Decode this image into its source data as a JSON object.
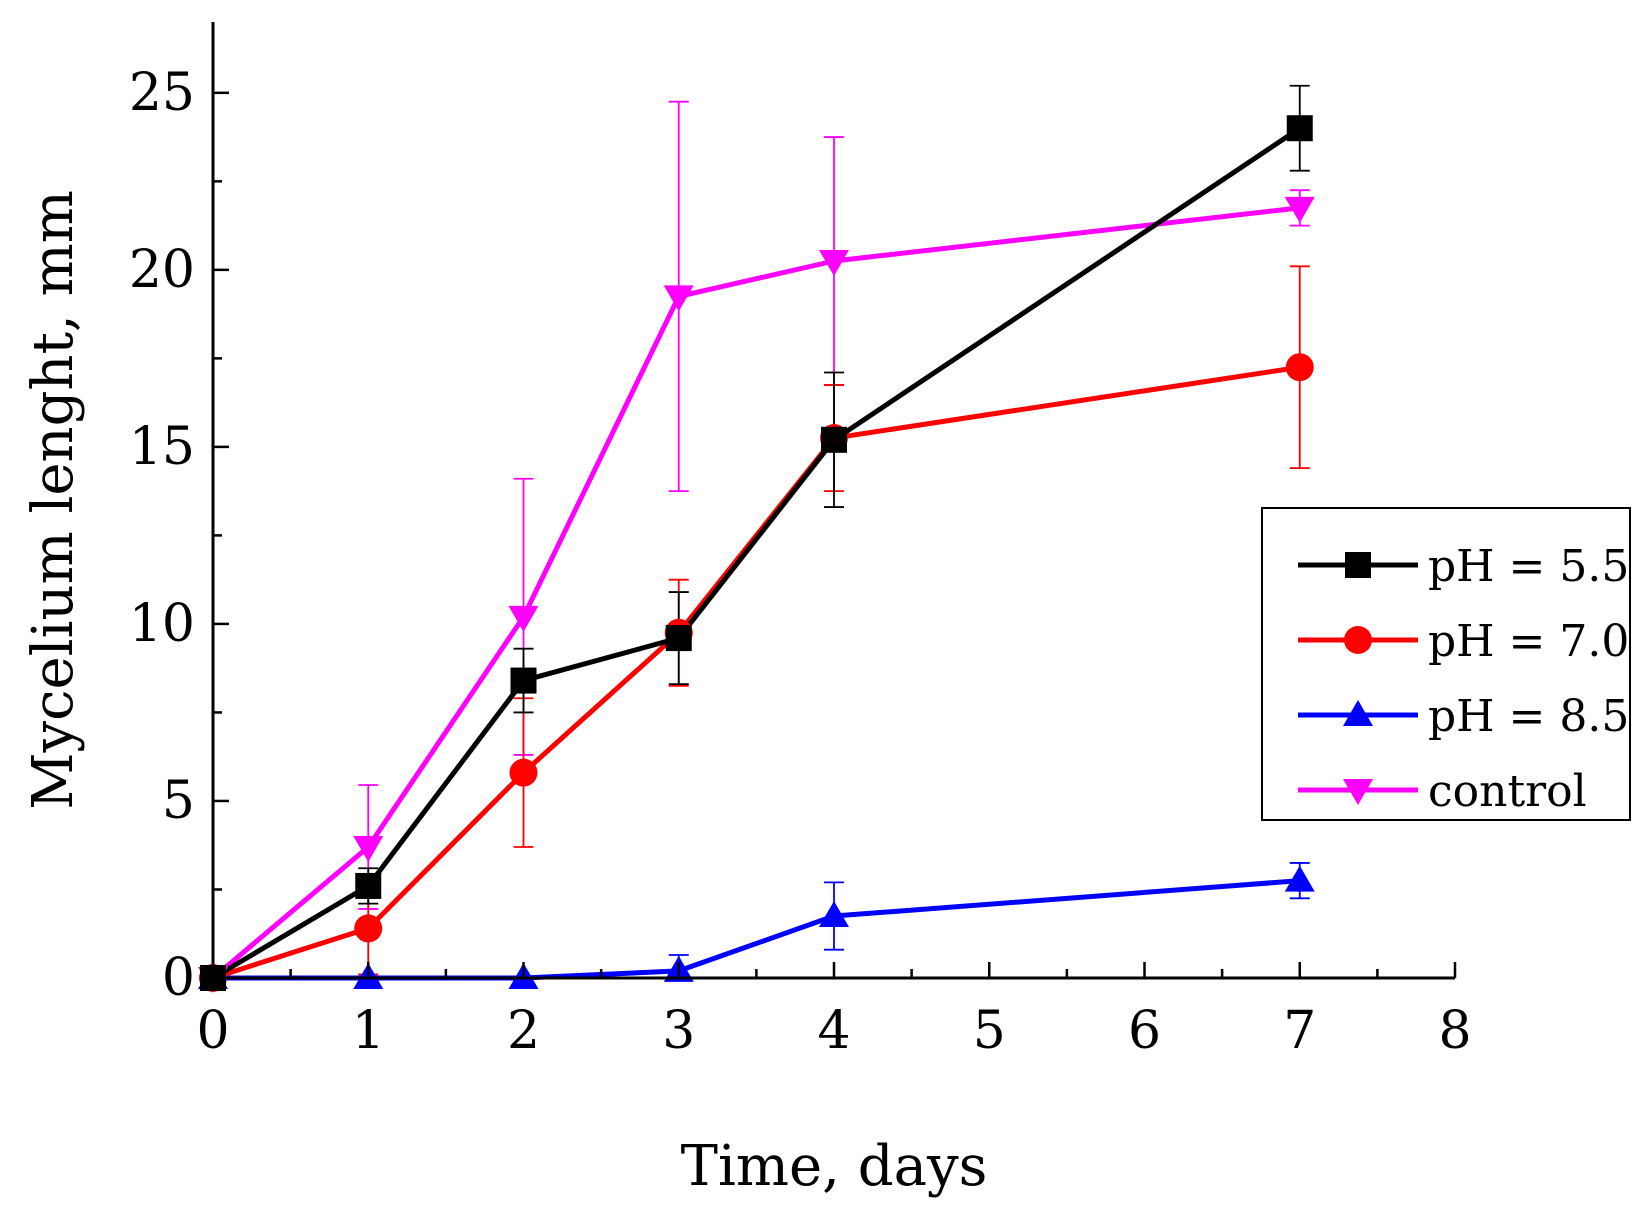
{
  "chart_data": {
    "type": "line",
    "title": "",
    "xlabel": "Time, days",
    "ylabel": "Mycelium lenght, mm",
    "xlim": [
      0,
      8
    ],
    "ylim": [
      0,
      27
    ],
    "xticks": [
      "0",
      "1",
      "2",
      "3",
      "4",
      "5",
      "6",
      "7",
      "8"
    ],
    "yticks": [
      "0",
      "5",
      "10",
      "15",
      "20",
      "25"
    ],
    "x": [
      0,
      1,
      2,
      3,
      4,
      7
    ],
    "legend_position": "right",
    "series": [
      {
        "name": "pH = 5.5",
        "color": "#000000",
        "marker": "square",
        "values": [
          0,
          2.6,
          8.4,
          9.6,
          15.2,
          24.0
        ],
        "errors": [
          0,
          0.5,
          0.9,
          1.3,
          1.9,
          1.2
        ]
      },
      {
        "name": "pH = 7.0",
        "color": "#ff0000",
        "marker": "circle",
        "values": [
          0,
          1.4,
          5.8,
          9.75,
          15.25,
          17.25
        ],
        "errors": [
          0,
          1.3,
          2.1,
          1.5,
          1.5,
          2.85
        ]
      },
      {
        "name": "pH = 8.5",
        "color": "#0000ff",
        "marker": "triangle-up",
        "values": [
          0,
          0,
          0,
          0.2,
          1.75,
          2.75
        ],
        "errors": [
          0,
          0,
          0,
          0.45,
          0.95,
          0.5
        ]
      },
      {
        "name": "control",
        "color": "#ff00ff",
        "marker": "triangle-down",
        "values": [
          0,
          3.7,
          10.2,
          19.25,
          20.25,
          21.75
        ],
        "errors": [
          0,
          1.75,
          3.9,
          5.5,
          3.5,
          0.5
        ]
      }
    ]
  }
}
